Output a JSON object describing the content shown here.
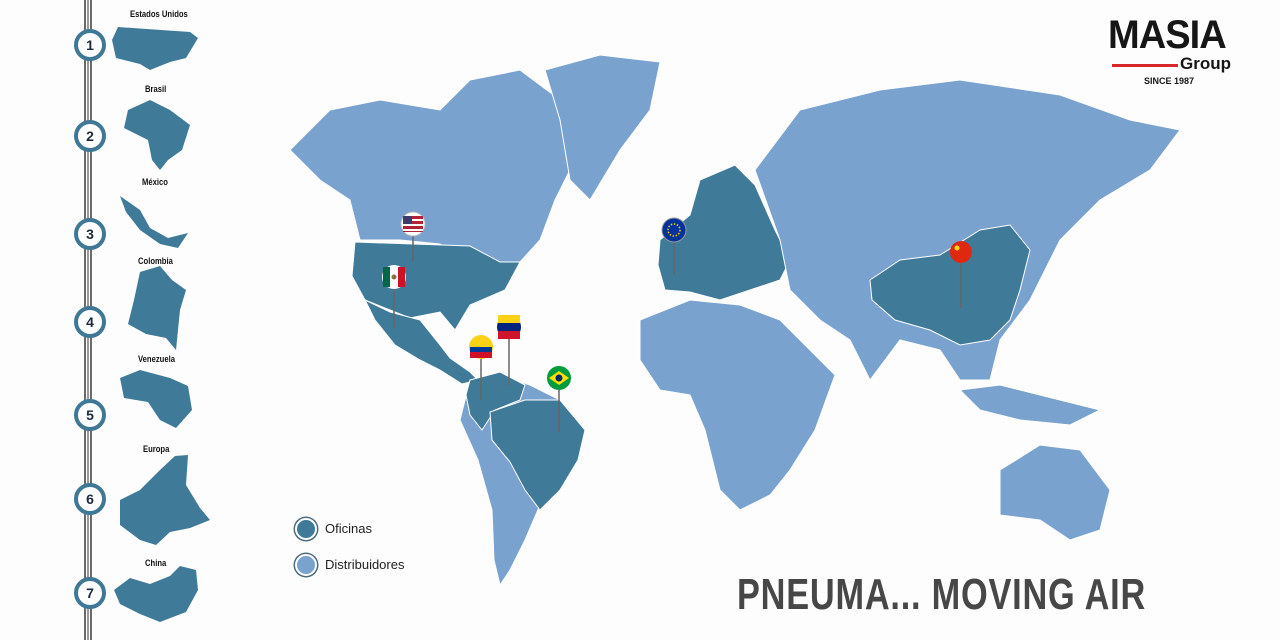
{
  "brand": {
    "name": "MASIA",
    "sub": "Group",
    "since": "SINCE 1987",
    "accent": "#d7262c"
  },
  "colors": {
    "oficinas": "#3f7a99",
    "distribuidores": "#7aa2cf"
  },
  "timeline": [
    {
      "n": "1",
      "country": "Estados Unidos"
    },
    {
      "n": "2",
      "country": "Brasil"
    },
    {
      "n": "3",
      "country": "México"
    },
    {
      "n": "4",
      "country": "Colombia"
    },
    {
      "n": "5",
      "country": "Venezuela"
    },
    {
      "n": "6",
      "country": "Europa"
    },
    {
      "n": "7",
      "country": "China"
    }
  ],
  "pins": [
    {
      "flag": "usa-flag-icon"
    },
    {
      "flag": "mexico-flag-icon"
    },
    {
      "flag": "colombia-flag-icon"
    },
    {
      "flag": "venezuela-flag-icon"
    },
    {
      "flag": "brazil-flag-icon"
    },
    {
      "flag": "eu-flag-icon"
    },
    {
      "flag": "china-flag-icon"
    }
  ],
  "legend": {
    "oficinas": "Oficinas",
    "distribuidores": "Distribuidores"
  },
  "slogan": "PNEUMA... MOVING AIR"
}
